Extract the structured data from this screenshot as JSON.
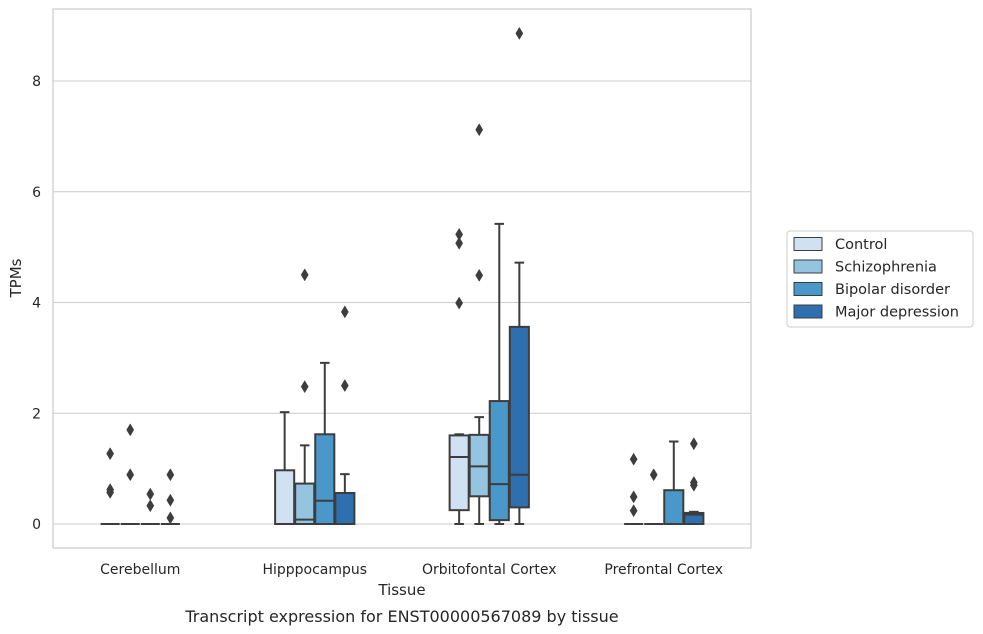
{
  "chart_data": {
    "type": "box",
    "title": "",
    "caption": "Transcript expression for ENST00000567089 by tissue",
    "xlabel": "Tissue",
    "ylabel": "TPMs",
    "ylim": [
      -0.42,
      9.3
    ],
    "yticks": [
      "0",
      "2",
      "4",
      "6",
      "8"
    ],
    "grid": "horizontal",
    "legend_position": "right",
    "categories": [
      "Cerebellum",
      "Hipppocampus",
      "Orbitofontal Cortex",
      "Prefrontal Cortex"
    ],
    "series": [
      {
        "name": "Control",
        "color": "#d0e1f2",
        "boxes": [
          {
            "q1": 0,
            "median": 0,
            "q3": 0,
            "whisker_low": 0,
            "whisker_high": 0,
            "outliers": [
              0.57,
              0.62,
              1.27
            ]
          },
          {
            "q1": 0,
            "median": 0,
            "q3": 0.97,
            "whisker_low": 0,
            "whisker_high": 2.02,
            "outliers": []
          },
          {
            "q1": 0.25,
            "median": 1.21,
            "q3": 1.6,
            "whisker_low": 0,
            "whisker_high": 1.62,
            "outliers": [
              3.99,
              5.07,
              5.23
            ]
          },
          {
            "q1": 0,
            "median": 0,
            "q3": 0,
            "whisker_low": 0,
            "whisker_high": 0,
            "outliers": [
              0.24,
              0.49,
              1.17
            ]
          }
        ]
      },
      {
        "name": "Schizophrenia",
        "color": "#94c4df",
        "boxes": [
          {
            "q1": 0,
            "median": 0,
            "q3": 0,
            "whisker_low": 0,
            "whisker_high": 0,
            "outliers": [
              0.89,
              1.7
            ]
          },
          {
            "q1": 0,
            "median": 0.08,
            "q3": 0.73,
            "whisker_low": 0,
            "whisker_high": 1.42,
            "outliers": [
              2.48,
              4.5
            ]
          },
          {
            "q1": 0.5,
            "median": 1.04,
            "q3": 1.61,
            "whisker_low": 0,
            "whisker_high": 1.93,
            "outliers": [
              4.49,
              7.12
            ]
          },
          {
            "q1": 0,
            "median": 0,
            "q3": 0,
            "whisker_low": 0,
            "whisker_high": 0,
            "outliers": [
              0.89
            ]
          }
        ]
      },
      {
        "name": "Bipolar disorder",
        "color": "#4a98c9",
        "boxes": [
          {
            "q1": 0,
            "median": 0,
            "q3": 0,
            "whisker_low": 0,
            "whisker_high": 0,
            "outliers": [
              0.33,
              0.54
            ]
          },
          {
            "q1": 0,
            "median": 0.42,
            "q3": 1.62,
            "whisker_low": 0,
            "whisker_high": 2.91,
            "outliers": []
          },
          {
            "q1": 0.07,
            "median": 0.72,
            "q3": 2.22,
            "whisker_low": 0,
            "whisker_high": 5.42,
            "outliers": []
          },
          {
            "q1": 0,
            "median": 0,
            "q3": 0.61,
            "whisker_low": 0,
            "whisker_high": 1.49,
            "outliers": []
          }
        ]
      },
      {
        "name": "Major depression",
        "color": "#2e6fb0",
        "boxes": [
          {
            "q1": 0,
            "median": 0,
            "q3": 0,
            "whisker_low": 0,
            "whisker_high": 0,
            "outliers": [
              0.11,
              0.43,
              0.89
            ]
          },
          {
            "q1": 0,
            "median": 0,
            "q3": 0.56,
            "whisker_low": 0,
            "whisker_high": 0.9,
            "outliers": [
              2.5,
              3.83
            ]
          },
          {
            "q1": 0.3,
            "median": 0.89,
            "q3": 3.56,
            "whisker_low": 0,
            "whisker_high": 4.72,
            "outliers": [
              8.86
            ]
          },
          {
            "q1": 0,
            "median": 0.17,
            "q3": 0.2,
            "whisker_low": 0,
            "whisker_high": 0.22,
            "outliers": [
              0.7,
              0.75,
              1.45
            ]
          }
        ]
      }
    ]
  }
}
